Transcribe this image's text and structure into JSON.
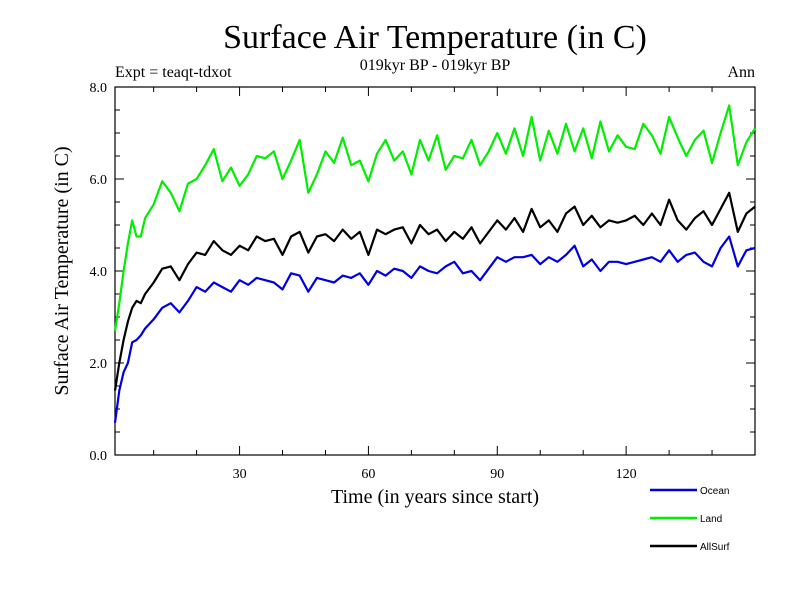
{
  "chart_data": {
    "type": "line",
    "title": "Surface Air Temperature (in C)",
    "subtitle": "019kyr BP - 019kyr BP",
    "experiment_label": "Expt = teaqt-tdxot",
    "season_label": "Ann",
    "xlabel": "Time (in years since start)",
    "ylabel": "Surface Air Temperature (in C)",
    "xlim": [
      1,
      150
    ],
    "ylim": [
      0,
      8
    ],
    "xticks": [
      30,
      60,
      90,
      120
    ],
    "xtick_labels": [
      "30",
      "60",
      "90",
      "120"
    ],
    "yticks": [
      0,
      2,
      4,
      6,
      8
    ],
    "ytick_labels": [
      "0.0",
      "2.0",
      "4.0",
      "6.0",
      "8.0"
    ],
    "grid": false,
    "legend_position": "bottom-right",
    "series": [
      {
        "name": "Ocean",
        "color": "#0000dd",
        "x": [
          1,
          2,
          3,
          4,
          5,
          6,
          7,
          8,
          10,
          12,
          14,
          16,
          18,
          20,
          22,
          24,
          26,
          28,
          30,
          32,
          34,
          36,
          38,
          40,
          42,
          44,
          46,
          48,
          50,
          52,
          54,
          56,
          58,
          60,
          62,
          64,
          66,
          68,
          70,
          72,
          74,
          76,
          78,
          80,
          82,
          84,
          86,
          88,
          90,
          92,
          94,
          96,
          98,
          100,
          102,
          104,
          106,
          108,
          110,
          112,
          114,
          116,
          118,
          120,
          122,
          124,
          126,
          128,
          130,
          132,
          134,
          136,
          138,
          140,
          142,
          144,
          146,
          148,
          150
        ],
        "values": [
          0.7,
          1.4,
          1.8,
          2.0,
          2.45,
          2.5,
          2.6,
          2.75,
          2.95,
          3.2,
          3.3,
          3.1,
          3.35,
          3.65,
          3.55,
          3.75,
          3.65,
          3.55,
          3.8,
          3.7,
          3.85,
          3.8,
          3.75,
          3.6,
          3.95,
          3.9,
          3.55,
          3.85,
          3.8,
          3.75,
          3.9,
          3.85,
          3.95,
          3.7,
          4.0,
          3.9,
          4.05,
          4.0,
          3.85,
          4.1,
          4.0,
          3.95,
          4.1,
          4.2,
          3.95,
          4.0,
          3.8,
          4.05,
          4.3,
          4.2,
          4.3,
          4.3,
          4.35,
          4.15,
          4.3,
          4.2,
          4.35,
          4.55,
          4.1,
          4.25,
          4.0,
          4.2,
          4.2,
          4.15,
          4.2,
          4.25,
          4.3,
          4.2,
          4.45,
          4.2,
          4.35,
          4.4,
          4.2,
          4.1,
          4.5,
          4.75,
          4.1,
          4.45,
          4.5
        ]
      },
      {
        "name": "Land",
        "color": "#00ee00",
        "x": [
          1,
          2,
          3,
          4,
          5,
          6,
          7,
          8,
          10,
          12,
          14,
          16,
          18,
          20,
          22,
          24,
          26,
          28,
          30,
          32,
          34,
          36,
          38,
          40,
          42,
          44,
          46,
          48,
          50,
          52,
          54,
          56,
          58,
          60,
          62,
          64,
          66,
          68,
          70,
          72,
          74,
          76,
          78,
          80,
          82,
          84,
          86,
          88,
          90,
          92,
          94,
          96,
          98,
          100,
          102,
          104,
          106,
          108,
          110,
          112,
          114,
          116,
          118,
          120,
          122,
          124,
          126,
          128,
          130,
          132,
          134,
          136,
          138,
          140,
          142,
          144,
          146,
          148,
          150
        ],
        "values": [
          2.7,
          3.3,
          4.0,
          4.6,
          5.1,
          4.75,
          4.75,
          5.15,
          5.45,
          5.95,
          5.7,
          5.3,
          5.9,
          6.0,
          6.3,
          6.65,
          5.95,
          6.25,
          5.85,
          6.1,
          6.5,
          6.45,
          6.6,
          6.0,
          6.4,
          6.85,
          5.7,
          6.1,
          6.6,
          6.35,
          6.9,
          6.3,
          6.4,
          5.95,
          6.55,
          6.85,
          6.4,
          6.6,
          6.1,
          6.85,
          6.4,
          6.95,
          6.2,
          6.5,
          6.45,
          6.85,
          6.3,
          6.6,
          7.0,
          6.55,
          7.1,
          6.5,
          7.35,
          6.4,
          7.05,
          6.55,
          7.2,
          6.6,
          7.1,
          6.45,
          7.25,
          6.6,
          6.95,
          6.7,
          6.65,
          7.2,
          6.95,
          6.55,
          7.35,
          6.9,
          6.5,
          6.85,
          7.05,
          6.35,
          7.0,
          7.6,
          6.3,
          6.8,
          7.1
        ]
      },
      {
        "name": "AllSurf",
        "color": "#000000",
        "x": [
          1,
          2,
          3,
          4,
          5,
          6,
          7,
          8,
          10,
          12,
          14,
          16,
          18,
          20,
          22,
          24,
          26,
          28,
          30,
          32,
          34,
          36,
          38,
          40,
          42,
          44,
          46,
          48,
          50,
          52,
          54,
          56,
          58,
          60,
          62,
          64,
          66,
          68,
          70,
          72,
          74,
          76,
          78,
          80,
          82,
          84,
          86,
          88,
          90,
          92,
          94,
          96,
          98,
          100,
          102,
          104,
          106,
          108,
          110,
          112,
          114,
          116,
          118,
          120,
          122,
          124,
          126,
          128,
          130,
          132,
          134,
          136,
          138,
          140,
          142,
          144,
          146,
          148,
          150
        ],
        "values": [
          1.4,
          2.0,
          2.5,
          2.9,
          3.2,
          3.35,
          3.3,
          3.5,
          3.75,
          4.05,
          4.1,
          3.8,
          4.15,
          4.4,
          4.35,
          4.65,
          4.45,
          4.35,
          4.55,
          4.45,
          4.75,
          4.65,
          4.7,
          4.35,
          4.75,
          4.85,
          4.4,
          4.75,
          4.8,
          4.65,
          4.9,
          4.7,
          4.85,
          4.35,
          4.9,
          4.8,
          4.9,
          4.95,
          4.6,
          5.0,
          4.8,
          4.9,
          4.65,
          4.85,
          4.7,
          4.95,
          4.6,
          4.85,
          5.1,
          4.9,
          5.15,
          4.85,
          5.35,
          4.95,
          5.1,
          4.85,
          5.25,
          5.4,
          5.0,
          5.2,
          4.95,
          5.1,
          5.05,
          5.1,
          5.2,
          5.0,
          5.25,
          5.0,
          5.55,
          5.1,
          4.9,
          5.15,
          5.3,
          5.0,
          5.35,
          5.7,
          4.85,
          5.25,
          5.4
        ]
      }
    ]
  }
}
